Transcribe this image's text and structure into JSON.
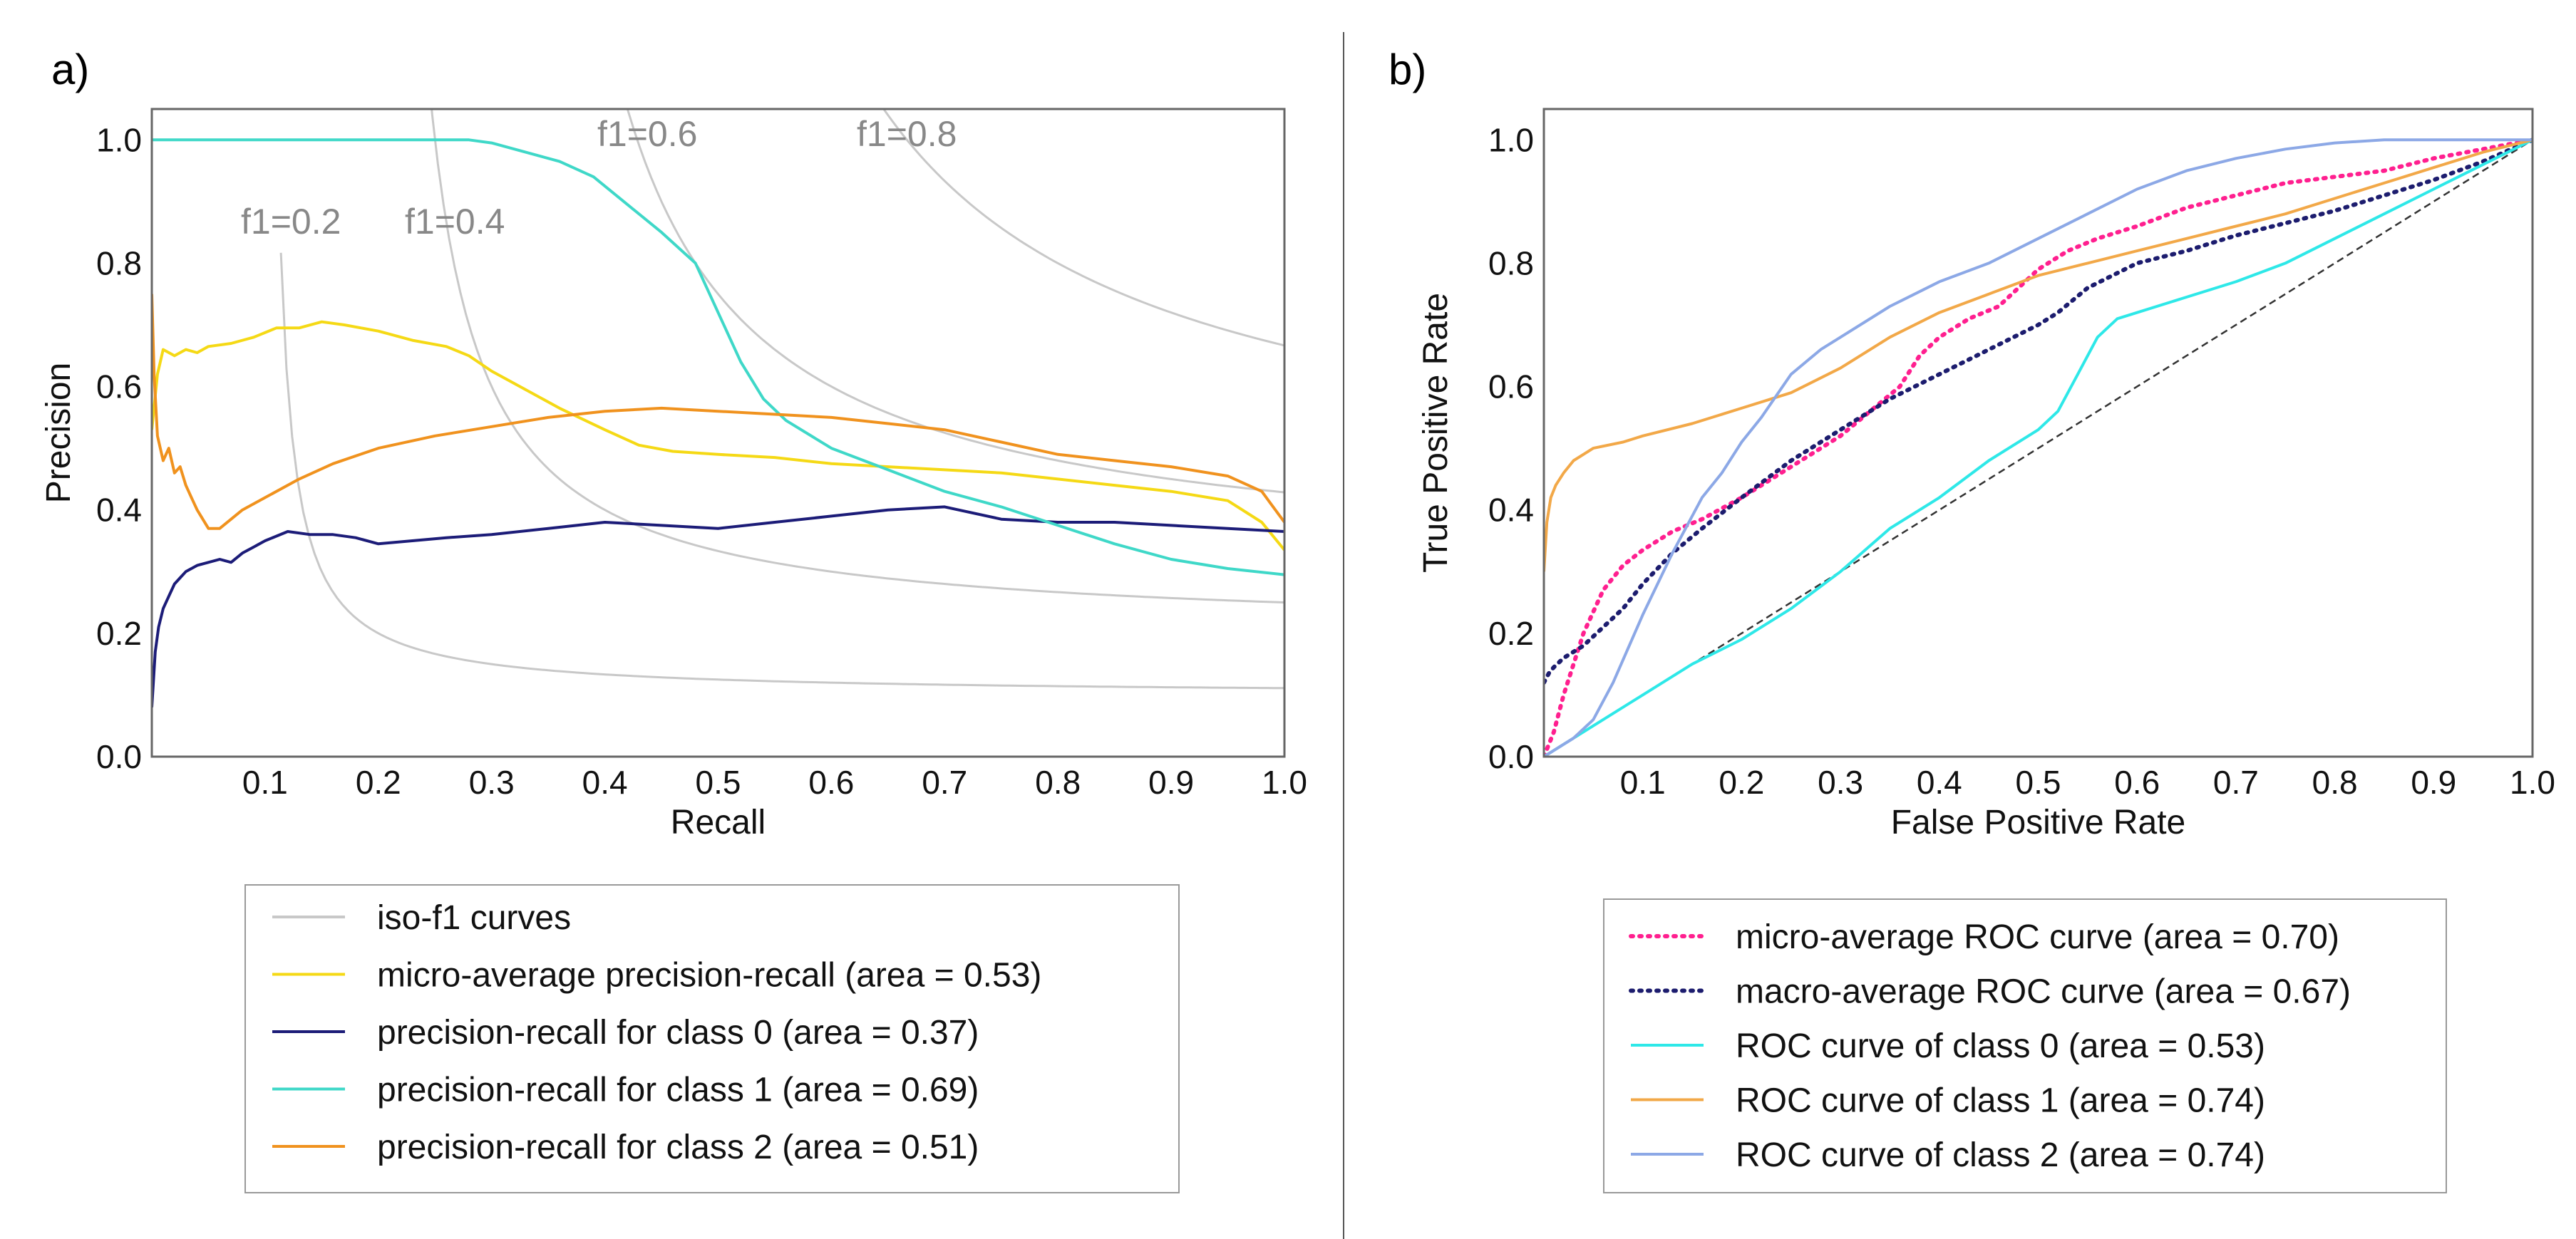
{
  "chart_data": [
    {
      "panel_label": "a)",
      "type": "line",
      "title": "",
      "xlabel": "Recall",
      "ylabel": "Precision",
      "xlim": [
        0.0,
        1.0
      ],
      "ylim": [
        0.0,
        1.05
      ],
      "xticks": [
        "0.1",
        "0.2",
        "0.3",
        "0.4",
        "0.5",
        "0.6",
        "0.7",
        "0.8",
        "0.9",
        "1.0"
      ],
      "yticks": [
        "0.0",
        "0.2",
        "0.4",
        "0.6",
        "0.8",
        "1.0"
      ],
      "grid": false,
      "legend_position": "bottom-outside",
      "iso_f1": {
        "legend": "iso-f1 curves",
        "color": "#c8c8c8",
        "values": [
          0.2,
          0.4,
          0.6,
          0.8
        ],
        "labels": [
          "f1=0.2",
          "f1=0.4",
          "f1=0.6",
          "f1=0.8"
        ]
      },
      "series": [
        {
          "name": "micro-average precision-recall (area = 0.53)",
          "color": "#f5d915",
          "style": "solid",
          "x": [
            0.0,
            0.005,
            0.01,
            0.02,
            0.03,
            0.04,
            0.05,
            0.07,
            0.09,
            0.11,
            0.13,
            0.15,
            0.17,
            0.2,
            0.23,
            0.26,
            0.28,
            0.3,
            0.33,
            0.36,
            0.4,
            0.43,
            0.46,
            0.5,
            0.55,
            0.6,
            0.65,
            0.7,
            0.75,
            0.8,
            0.85,
            0.9,
            0.95,
            0.98,
            1.0
          ],
          "y": [
            0.53,
            0.62,
            0.66,
            0.65,
            0.66,
            0.655,
            0.665,
            0.67,
            0.68,
            0.695,
            0.695,
            0.705,
            0.7,
            0.69,
            0.675,
            0.665,
            0.65,
            0.625,
            0.595,
            0.565,
            0.53,
            0.505,
            0.495,
            0.49,
            0.485,
            0.475,
            0.47,
            0.465,
            0.46,
            0.45,
            0.44,
            0.43,
            0.415,
            0.38,
            0.335
          ]
        },
        {
          "name": "precision-recall for class 0 (area = 0.37)",
          "color": "#1c1c78",
          "style": "solid",
          "x": [
            0.0,
            0.003,
            0.006,
            0.01,
            0.015,
            0.02,
            0.03,
            0.04,
            0.05,
            0.06,
            0.07,
            0.08,
            0.09,
            0.1,
            0.12,
            0.14,
            0.16,
            0.18,
            0.2,
            0.23,
            0.26,
            0.3,
            0.35,
            0.4,
            0.45,
            0.5,
            0.55,
            0.6,
            0.65,
            0.7,
            0.75,
            0.8,
            0.85,
            0.9,
            0.95,
            1.0
          ],
          "y": [
            0.08,
            0.17,
            0.21,
            0.24,
            0.26,
            0.28,
            0.3,
            0.31,
            0.315,
            0.32,
            0.315,
            0.33,
            0.34,
            0.35,
            0.365,
            0.36,
            0.36,
            0.355,
            0.345,
            0.35,
            0.355,
            0.36,
            0.37,
            0.38,
            0.375,
            0.37,
            0.38,
            0.39,
            0.4,
            0.405,
            0.385,
            0.38,
            0.38,
            0.375,
            0.37,
            0.365
          ]
        },
        {
          "name": "precision-recall for class 1 (area = 0.69)",
          "color": "#3fd8c8",
          "style": "solid",
          "x": [
            0.0,
            0.1,
            0.2,
            0.28,
            0.3,
            0.33,
            0.36,
            0.39,
            0.42,
            0.45,
            0.48,
            0.5,
            0.52,
            0.54,
            0.56,
            0.6,
            0.65,
            0.7,
            0.75,
            0.8,
            0.85,
            0.9,
            0.95,
            1.0
          ],
          "y": [
            1.0,
            1.0,
            1.0,
            1.0,
            0.995,
            0.98,
            0.965,
            0.94,
            0.895,
            0.85,
            0.8,
            0.72,
            0.64,
            0.58,
            0.545,
            0.5,
            0.465,
            0.43,
            0.405,
            0.375,
            0.345,
            0.32,
            0.305,
            0.295
          ]
        },
        {
          "name": "precision-recall for class 2 (area = 0.51)",
          "color": "#f0921e",
          "style": "solid",
          "x": [
            0.0,
            0.002,
            0.005,
            0.01,
            0.015,
            0.02,
            0.025,
            0.03,
            0.035,
            0.04,
            0.045,
            0.05,
            0.06,
            0.07,
            0.08,
            0.1,
            0.13,
            0.16,
            0.2,
            0.25,
            0.3,
            0.35,
            0.4,
            0.45,
            0.5,
            0.55,
            0.6,
            0.65,
            0.7,
            0.75,
            0.8,
            0.85,
            0.9,
            0.95,
            0.98,
            1.0
          ],
          "y": [
            0.75,
            0.62,
            0.52,
            0.48,
            0.5,
            0.46,
            0.47,
            0.44,
            0.42,
            0.4,
            0.385,
            0.37,
            0.37,
            0.385,
            0.4,
            0.42,
            0.45,
            0.475,
            0.5,
            0.52,
            0.535,
            0.55,
            0.56,
            0.565,
            0.56,
            0.555,
            0.55,
            0.54,
            0.53,
            0.51,
            0.49,
            0.48,
            0.47,
            0.455,
            0.43,
            0.38
          ]
        }
      ]
    },
    {
      "panel_label": "b)",
      "type": "line",
      "title": "",
      "xlabel": "False Positive Rate",
      "ylabel": "True Positive Rate",
      "xlim": [
        0.0,
        1.0
      ],
      "ylim": [
        0.0,
        1.05
      ],
      "xticks": [
        "0.1",
        "0.2",
        "0.3",
        "0.4",
        "0.5",
        "0.6",
        "0.7",
        "0.8",
        "0.9",
        "1.0"
      ],
      "yticks": [
        "0.0",
        "0.2",
        "0.4",
        "0.6",
        "0.8",
        "1.0"
      ],
      "grid": false,
      "legend_position": "bottom-outside",
      "chance_line": {
        "x": [
          0.0,
          1.0
        ],
        "y": [
          0.0,
          1.0
        ],
        "color": "#333333",
        "style": "dashed"
      },
      "series": [
        {
          "name": "micro-average ROC curve (area = 0.70)",
          "color": "#ff1f8f",
          "style": "dotted",
          "x": [
            0.0,
            0.01,
            0.02,
            0.04,
            0.06,
            0.08,
            0.1,
            0.13,
            0.16,
            0.2,
            0.25,
            0.3,
            0.33,
            0.36,
            0.38,
            0.4,
            0.43,
            0.46,
            0.48,
            0.5,
            0.53,
            0.56,
            0.6,
            0.65,
            0.7,
            0.75,
            0.8,
            0.85,
            0.9,
            0.95,
            1.0
          ],
          "y": [
            0.0,
            0.04,
            0.1,
            0.2,
            0.27,
            0.31,
            0.335,
            0.365,
            0.385,
            0.42,
            0.47,
            0.52,
            0.56,
            0.6,
            0.65,
            0.68,
            0.71,
            0.73,
            0.76,
            0.79,
            0.82,
            0.84,
            0.86,
            0.89,
            0.91,
            0.93,
            0.94,
            0.95,
            0.97,
            0.985,
            1.0
          ]
        },
        {
          "name": "macro-average ROC curve (area = 0.67)",
          "color": "#1c1c6e",
          "style": "dotted",
          "x": [
            0.0,
            0.005,
            0.01,
            0.02,
            0.04,
            0.06,
            0.08,
            0.1,
            0.13,
            0.16,
            0.2,
            0.25,
            0.3,
            0.35,
            0.4,
            0.45,
            0.5,
            0.52,
            0.55,
            0.6,
            0.65,
            0.7,
            0.75,
            0.8,
            0.85,
            0.9,
            0.95,
            1.0
          ],
          "y": [
            0.12,
            0.135,
            0.145,
            0.16,
            0.18,
            0.21,
            0.24,
            0.28,
            0.33,
            0.37,
            0.42,
            0.48,
            0.53,
            0.58,
            0.62,
            0.66,
            0.7,
            0.72,
            0.76,
            0.8,
            0.82,
            0.845,
            0.865,
            0.885,
            0.91,
            0.935,
            0.965,
            1.0
          ]
        },
        {
          "name": "ROC curve of class 0 (area = 0.53)",
          "color": "#2ee8e8",
          "style": "solid",
          "x": [
            0.0,
            0.05,
            0.1,
            0.15,
            0.2,
            0.25,
            0.3,
            0.35,
            0.4,
            0.45,
            0.5,
            0.52,
            0.54,
            0.56,
            0.58,
            0.6,
            0.65,
            0.7,
            0.75,
            0.8,
            0.85,
            0.9,
            0.95,
            1.0
          ],
          "y": [
            0.0,
            0.05,
            0.1,
            0.15,
            0.19,
            0.24,
            0.3,
            0.37,
            0.42,
            0.48,
            0.53,
            0.56,
            0.62,
            0.68,
            0.71,
            0.72,
            0.745,
            0.77,
            0.8,
            0.84,
            0.88,
            0.92,
            0.96,
            1.0
          ]
        },
        {
          "name": "ROC curve of class 1 (area = 0.74)",
          "color": "#f2a848",
          "style": "solid",
          "x": [
            0.0,
            0.003,
            0.007,
            0.012,
            0.02,
            0.03,
            0.05,
            0.08,
            0.1,
            0.15,
            0.2,
            0.25,
            0.3,
            0.35,
            0.4,
            0.45,
            0.5,
            0.55,
            0.6,
            0.65,
            0.7,
            0.75,
            0.8,
            0.85,
            0.9,
            0.95,
            1.0
          ],
          "y": [
            0.3,
            0.38,
            0.42,
            0.44,
            0.46,
            0.48,
            0.5,
            0.51,
            0.52,
            0.54,
            0.565,
            0.59,
            0.63,
            0.68,
            0.72,
            0.75,
            0.78,
            0.8,
            0.82,
            0.84,
            0.86,
            0.88,
            0.905,
            0.93,
            0.955,
            0.98,
            1.0
          ]
        },
        {
          "name": "ROC curve of class 2 (area = 0.74)",
          "color": "#8ca8e6",
          "style": "solid",
          "x": [
            0.0,
            0.03,
            0.05,
            0.07,
            0.1,
            0.13,
            0.16,
            0.18,
            0.2,
            0.22,
            0.25,
            0.28,
            0.3,
            0.35,
            0.4,
            0.45,
            0.5,
            0.55,
            0.6,
            0.65,
            0.7,
            0.75,
            0.8,
            0.85,
            0.9,
            0.95,
            1.0
          ],
          "y": [
            0.0,
            0.03,
            0.06,
            0.12,
            0.23,
            0.33,
            0.42,
            0.46,
            0.51,
            0.55,
            0.62,
            0.66,
            0.68,
            0.73,
            0.77,
            0.8,
            0.84,
            0.88,
            0.92,
            0.95,
            0.97,
            0.985,
            0.995,
            1.0,
            1.0,
            1.0,
            1.0
          ]
        }
      ]
    }
  ]
}
